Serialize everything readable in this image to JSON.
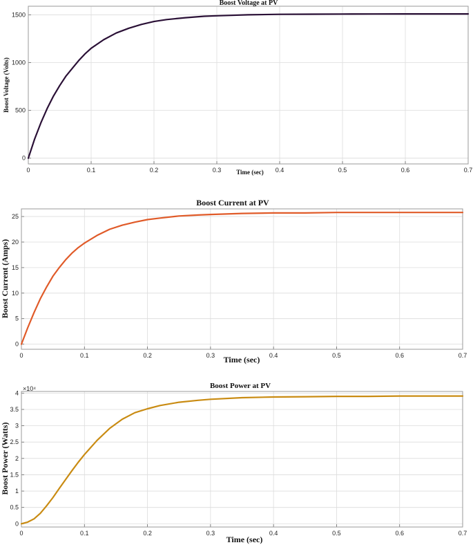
{
  "chart_data": [
    {
      "type": "line",
      "title": "Boost Voltage at PV",
      "xlabel": "Time (sec)",
      "ylabel": "Boost Voltage (Volts)",
      "exponent_label": "",
      "xlim": [
        0,
        0.7
      ],
      "ylim": [
        -60,
        1590
      ],
      "xticks": [
        "0",
        "0.1",
        "0.2",
        "0.3",
        "0.4",
        "0.5",
        "0.6",
        "0.7"
      ],
      "yticks": [
        "0",
        "500",
        "1000",
        "1500"
      ],
      "ytick_values": [
        0,
        500,
        1000,
        1500
      ],
      "grid": true,
      "color": "#2a1036",
      "series": [
        {
          "x": [
            0,
            0.01,
            0.02,
            0.03,
            0.04,
            0.05,
            0.06,
            0.07,
            0.08,
            0.09,
            0.1,
            0.12,
            0.14,
            0.16,
            0.18,
            0.2,
            0.22,
            0.25,
            0.28,
            0.3,
            0.35,
            0.4,
            0.45,
            0.5,
            0.55,
            0.6,
            0.65,
            0.7
          ],
          "values": [
            0,
            200,
            370,
            520,
            650,
            760,
            860,
            940,
            1020,
            1090,
            1150,
            1240,
            1310,
            1360,
            1400,
            1430,
            1450,
            1470,
            1485,
            1490,
            1500,
            1505,
            1507,
            1508,
            1509,
            1510,
            1510,
            1510
          ]
        }
      ]
    },
    {
      "type": "line",
      "title": "Boost Current at PV",
      "xlabel": "Time (sec)",
      "ylabel": "Boost Current (Amps)",
      "exponent_label": "",
      "xlim": [
        0,
        0.7
      ],
      "ylim": [
        -1,
        26.5
      ],
      "xticks": [
        "0",
        "0.1",
        "0.2",
        "0.3",
        "0.4",
        "0.5",
        "0.6",
        "0.7"
      ],
      "yticks": [
        "0",
        "5",
        "10",
        "15",
        "20",
        "25"
      ],
      "ytick_values": [
        0,
        5,
        10,
        15,
        20,
        25
      ],
      "grid": true,
      "color": "#e05a28",
      "series": [
        {
          "x": [
            0,
            0.01,
            0.02,
            0.03,
            0.04,
            0.05,
            0.06,
            0.07,
            0.08,
            0.09,
            0.1,
            0.12,
            0.14,
            0.16,
            0.18,
            0.2,
            0.22,
            0.25,
            0.28,
            0.3,
            0.35,
            0.4,
            0.45,
            0.5,
            0.55,
            0.6,
            0.65,
            0.7
          ],
          "values": [
            0,
            3.2,
            6.2,
            8.9,
            11.2,
            13.3,
            15.0,
            16.5,
            17.8,
            18.9,
            19.8,
            21.3,
            22.5,
            23.3,
            23.9,
            24.4,
            24.7,
            25.1,
            25.3,
            25.4,
            25.6,
            25.7,
            25.7,
            25.8,
            25.8,
            25.8,
            25.8,
            25.8
          ]
        }
      ]
    },
    {
      "type": "line",
      "title": "Boost Power at PV",
      "xlabel": "Time (sec)",
      "ylabel": "Boost Power (Watts)",
      "exponent_label": "×10⁴",
      "xlim": [
        0,
        0.7
      ],
      "ylim": [
        -0.1,
        4.05
      ],
      "xticks": [
        "0",
        "0.1",
        "0.2",
        "0.3",
        "0.4",
        "0.5",
        "0.6",
        "0.7"
      ],
      "yticks": [
        "0",
        "0.5",
        "1",
        "1.5",
        "2",
        "2.5",
        "3",
        "3.5",
        "4"
      ],
      "ytick_values": [
        0,
        0.5,
        1,
        1.5,
        2,
        2.5,
        3,
        3.5,
        4
      ],
      "grid": true,
      "color": "#c98b12",
      "series": [
        {
          "x": [
            0,
            0.01,
            0.02,
            0.03,
            0.04,
            0.05,
            0.06,
            0.07,
            0.08,
            0.09,
            0.1,
            0.12,
            0.14,
            0.16,
            0.18,
            0.2,
            0.22,
            0.25,
            0.28,
            0.3,
            0.35,
            0.4,
            0.45,
            0.5,
            0.55,
            0.6,
            0.65,
            0.7
          ],
          "values": [
            0,
            0.05,
            0.15,
            0.32,
            0.55,
            0.8,
            1.08,
            1.35,
            1.62,
            1.88,
            2.12,
            2.55,
            2.92,
            3.2,
            3.4,
            3.52,
            3.62,
            3.72,
            3.78,
            3.81,
            3.86,
            3.88,
            3.89,
            3.9,
            3.9,
            3.91,
            3.91,
            3.91
          ]
        }
      ]
    }
  ]
}
